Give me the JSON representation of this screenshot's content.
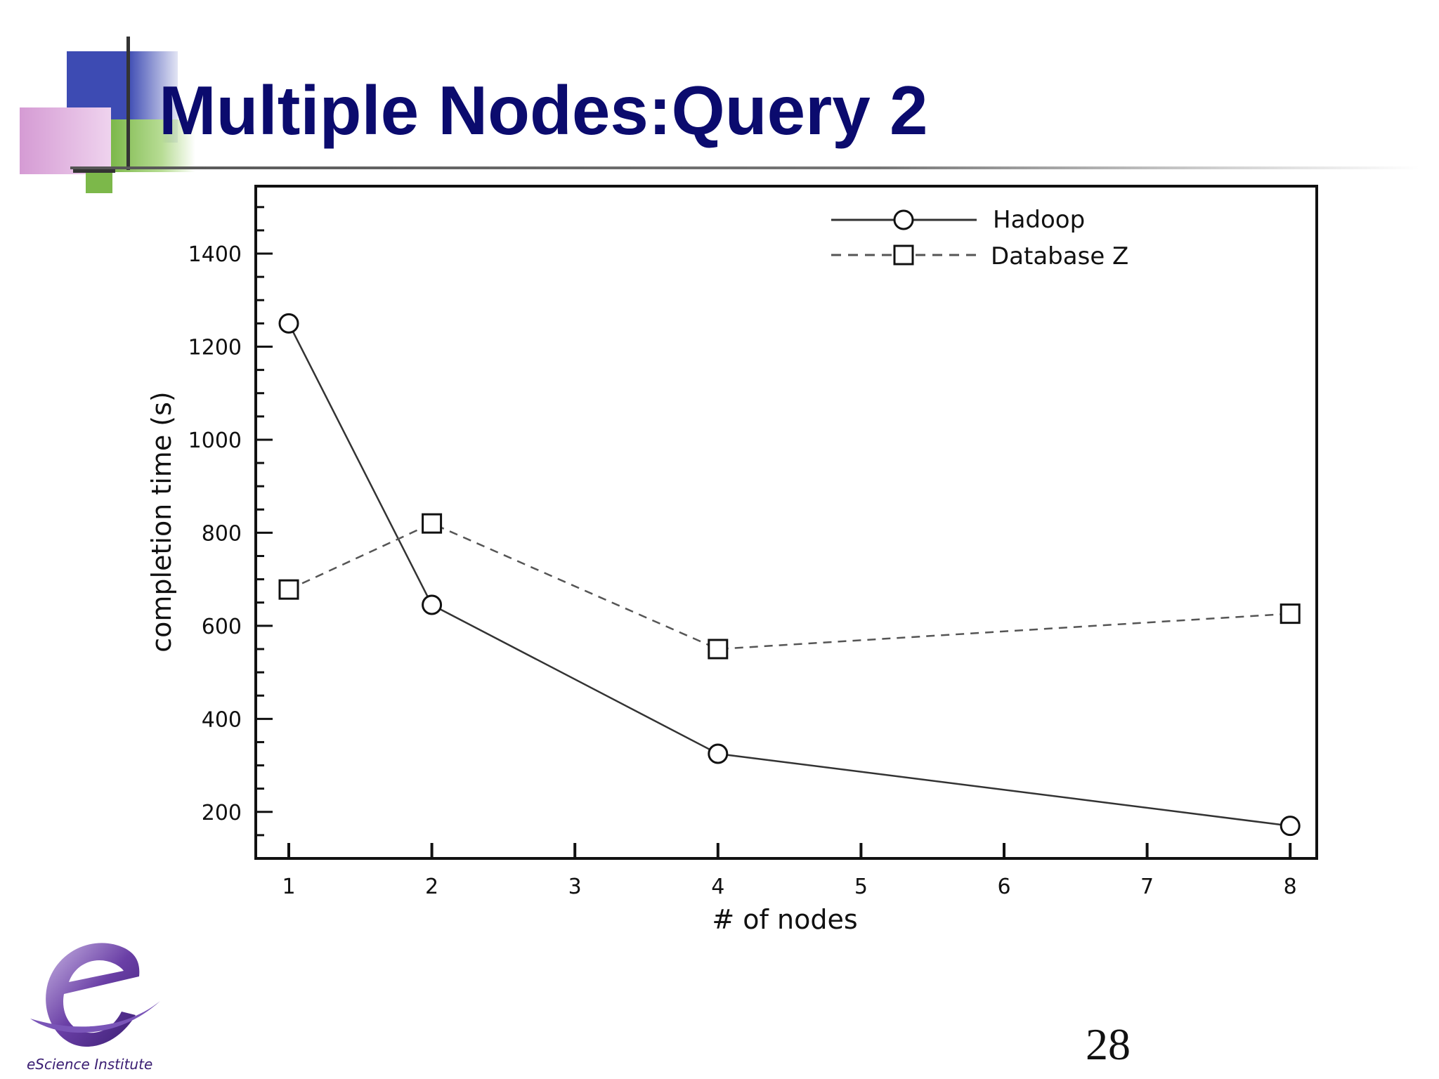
{
  "slide": {
    "title": "Multiple Nodes:Query 2",
    "page_number": "28"
  },
  "logo": {
    "text": "eScience Institute",
    "colors": {
      "purple": "#5a2d91",
      "light": "#c9b6e4"
    }
  },
  "decor_colors": {
    "blue": "#3d4bb3",
    "pink": "#d59bd4",
    "green": "#7cb84a",
    "dark": "#333333"
  },
  "chart_data": {
    "type": "line",
    "title": "",
    "xlabel": "# of nodes",
    "ylabel": "completion time (s)",
    "x_ticks": [
      "1",
      "2",
      "3",
      "4",
      "5",
      "6",
      "7",
      "8"
    ],
    "y_ticks": [
      200,
      400,
      600,
      800,
      1000,
      1200,
      1400
    ],
    "ylim": [
      100,
      1545
    ],
    "legend_position": "top-right",
    "series": [
      {
        "name": "Hadoop",
        "style": "solid",
        "marker": "circle",
        "x": [
          "1",
          "2",
          "4",
          "8"
        ],
        "values": [
          1250,
          645,
          325,
          170
        ]
      },
      {
        "name": "Database Z",
        "style": "dashed",
        "marker": "square",
        "x": [
          "1",
          "2",
          "4",
          "8"
        ],
        "values": [
          678,
          820,
          550,
          626
        ]
      }
    ]
  }
}
